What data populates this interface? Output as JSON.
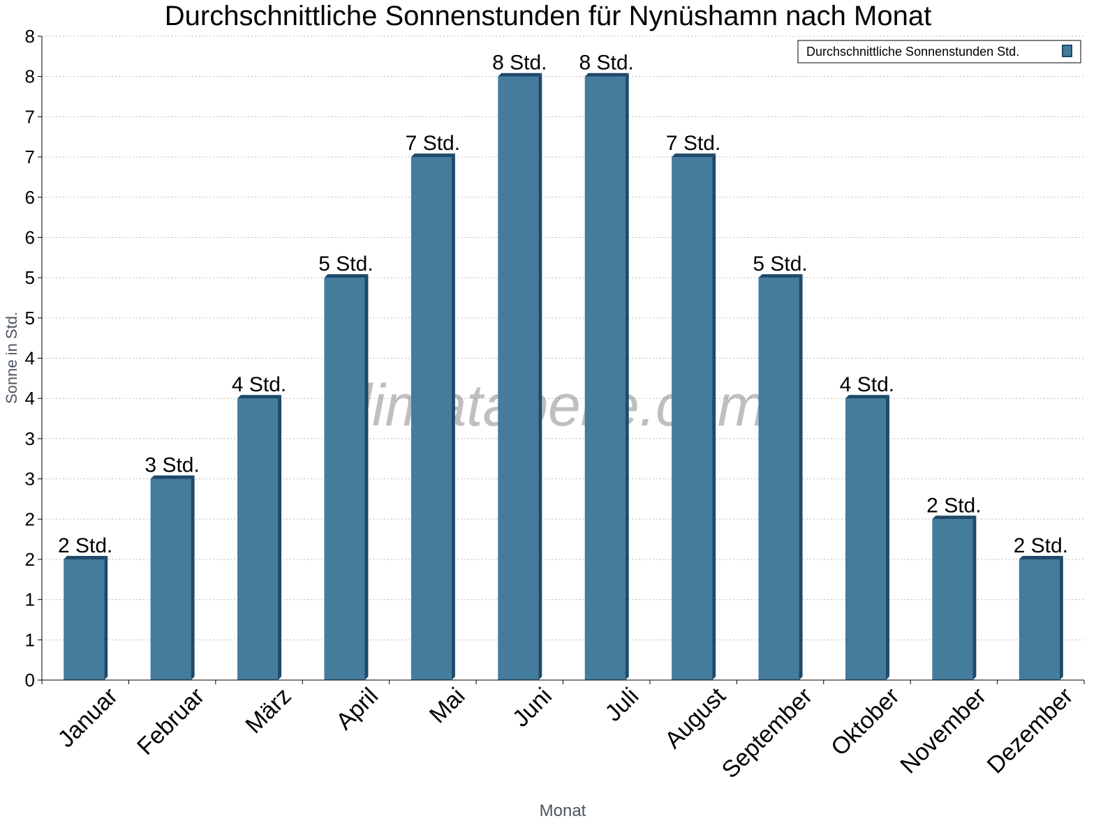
{
  "chart_data": {
    "type": "bar",
    "title": "Durchschnittliche Sonnenstunden für Nynüshamn nach Monat",
    "xlabel": "Monat",
    "ylabel": "Sonne in Std.",
    "ylim": [
      0,
      8
    ],
    "yticks": [
      0,
      0.5,
      1,
      1.5,
      2,
      2.5,
      3,
      3.5,
      4,
      4.5,
      5,
      5.5,
      6,
      6.5,
      7,
      7.5,
      8
    ],
    "ytick_labels": [
      "0",
      "1",
      "1",
      "2",
      "2",
      "3",
      "3",
      "4",
      "4",
      "5",
      "5",
      "6",
      "6",
      "7",
      "7",
      "8",
      "8"
    ],
    "grid": true,
    "legend_position": "top-right",
    "categories": [
      "Januar",
      "Februar",
      "März",
      "April",
      "Mai",
      "Juni",
      "Juli",
      "August",
      "September",
      "Oktober",
      "November",
      "Dezember"
    ],
    "series": [
      {
        "name": "Durchschnittliche Sonnenstunden Std.",
        "color": "#457b9d",
        "side_color": "#1d4a6b",
        "values": [
          1.5,
          2.5,
          3.5,
          5.0,
          6.5,
          7.5,
          7.5,
          6.5,
          5.0,
          3.5,
          2.0,
          1.5
        ],
        "data_labels": [
          "2 Std.",
          "3 Std.",
          "4 Std.",
          "5 Std.",
          "7 Std.",
          "8 Std.",
          "8 Std.",
          "7 Std.",
          "5 Std.",
          "4 Std.",
          "2 Std.",
          "2 Std."
        ]
      }
    ],
    "watermark": "klimatabelle.com"
  }
}
